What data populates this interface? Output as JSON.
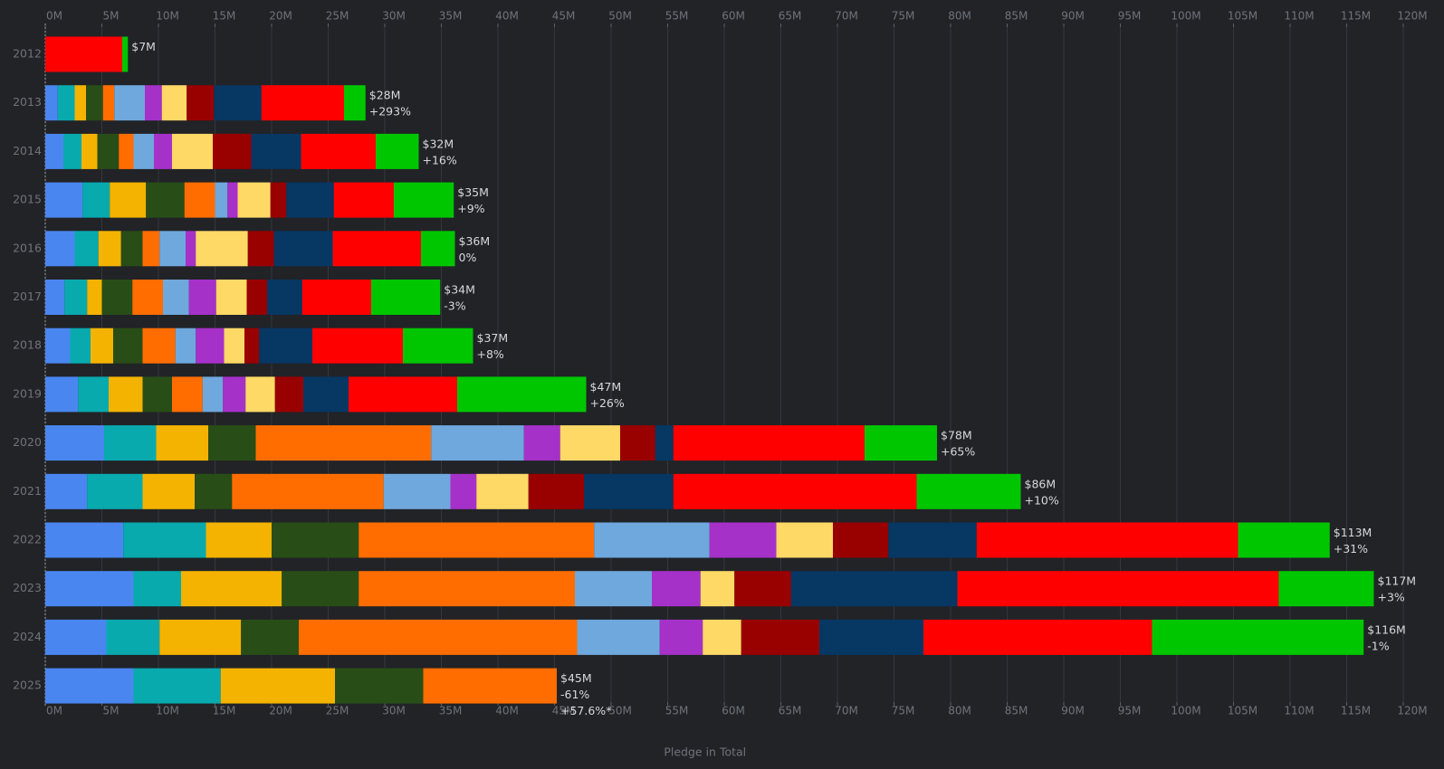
{
  "colors": {
    "background": "#212327",
    "grid": "#34373c",
    "axis_text": "#6f7378",
    "label_text": "#d6d8da",
    "segments": [
      "#4a86f0",
      "#08aaae",
      "#f3b300",
      "#294d17",
      "#ff6d00",
      "#6fa8dc",
      "#a631c9",
      "#ffd966",
      "#990000",
      "#073763",
      "#ff0000",
      "#00c600"
    ]
  },
  "chart_data": {
    "type": "bar",
    "orientation": "horizontal",
    "stacked": true,
    "xlabel": "Pledge in Total",
    "ylabel": "",
    "xlim": [
      0,
      120
    ],
    "x_ticks": [
      "0M",
      "5M",
      "10M",
      "15M",
      "20M",
      "25M",
      "30M",
      "35M",
      "40M",
      "45M",
      "50M",
      "55M",
      "60M",
      "65M",
      "70M",
      "75M",
      "80M",
      "85M",
      "90M",
      "95M",
      "100M",
      "105M",
      "110M",
      "115M",
      "120M"
    ],
    "grid": true,
    "legend": "none",
    "categories": [
      "2012",
      "2013",
      "2014",
      "2015",
      "2016",
      "2017",
      "2018",
      "2019",
      "2020",
      "2021",
      "2022",
      "2023",
      "2024",
      "2025"
    ],
    "segment_values": [
      [
        0,
        0,
        0,
        0,
        0,
        0,
        0,
        0,
        0,
        0,
        6.8,
        0.5
      ],
      [
        1.1,
        1.5,
        1.0,
        1.5,
        1.0,
        2.7,
        1.5,
        2.2,
        2.4,
        4.2,
        7.3,
        1.9
      ],
      [
        1.6,
        1.6,
        1.4,
        1.9,
        1.3,
        1.8,
        1.6,
        3.6,
        3.4,
        4.4,
        6.6,
        3.8
      ],
      [
        3.3,
        2.4,
        3.2,
        3.4,
        2.7,
        1.1,
        0.9,
        2.9,
        1.4,
        4.2,
        5.3,
        5.3
      ],
      [
        2.6,
        2.1,
        2.0,
        1.9,
        1.5,
        2.3,
        0.9,
        4.6,
        2.3,
        5.2,
        7.8,
        3.0
      ],
      [
        1.7,
        2.0,
        1.3,
        2.7,
        2.7,
        2.3,
        2.4,
        2.7,
        1.8,
        3.1,
        6.1,
        6.1
      ],
      [
        2.2,
        1.8,
        2.0,
        2.6,
        2.9,
        1.8,
        2.5,
        1.8,
        1.3,
        4.7,
        8.0,
        6.2
      ],
      [
        2.9,
        2.7,
        3.0,
        2.6,
        2.7,
        1.8,
        2.0,
        2.6,
        2.5,
        4.0,
        9.6,
        11.4
      ],
      [
        5.2,
        4.6,
        4.6,
        4.2,
        15.5,
        8.2,
        3.2,
        5.3,
        3.1,
        1.6,
        16.9,
        6.4
      ],
      [
        3.7,
        4.9,
        4.6,
        3.3,
        13.4,
        5.9,
        2.3,
        4.6,
        4.9,
        7.9,
        21.5,
        9.2
      ],
      [
        6.9,
        7.3,
        5.8,
        7.7,
        20.8,
        10.2,
        5.9,
        5.0,
        4.9,
        7.8,
        23.1,
        8.1
      ],
      [
        7.8,
        4.2,
        8.9,
        6.8,
        19.1,
        6.8,
        4.3,
        3.0,
        5.0,
        14.7,
        28.4,
        8.4
      ],
      [
        5.4,
        4.7,
        7.2,
        5.1,
        24.6,
        7.3,
        3.8,
        3.4,
        6.9,
        9.2,
        20.2,
        18.7
      ],
      [
        7.8,
        7.7,
        10.1,
        7.8,
        11.8,
        0,
        0,
        0,
        0,
        0,
        0,
        0
      ]
    ],
    "totals": [
      7,
      28,
      32,
      35,
      36,
      34,
      37,
      47,
      78,
      86,
      113,
      117,
      116,
      45
    ],
    "total_labels": [
      "$7M",
      "$28M",
      "$32M",
      "$35M",
      "$36M",
      "$34M",
      "$37M",
      "$47M",
      "$78M",
      "$86M",
      "$113M",
      "$117M",
      "$116M",
      "$45M"
    ],
    "change_labels": [
      "",
      "+293%",
      "+16%",
      "+9%",
      "0%",
      "-3%",
      "+8%",
      "+26%",
      "+65%",
      "+10%",
      "+31%",
      "+3%",
      "-1%",
      "-61%"
    ],
    "extra_labels": [
      "",
      "",
      "",
      "",
      "",
      "",
      "",
      "",
      "",
      "",
      "",
      "",
      "",
      "+57.6%*"
    ]
  }
}
